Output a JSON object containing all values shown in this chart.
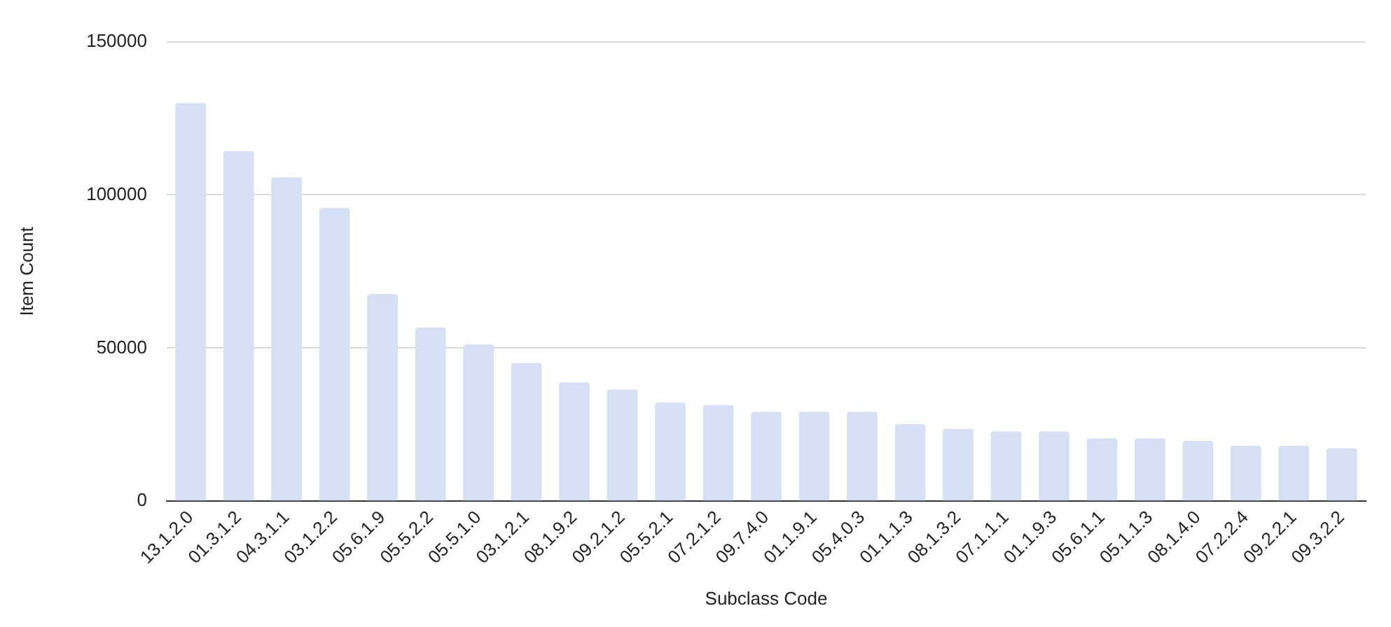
{
  "chart_data": {
    "type": "bar",
    "xlabel": "Subclass Code",
    "ylabel": "Item Count",
    "categories": [
      "13.1.2.0",
      "01.3.1.2",
      "04.3.1.1",
      "03.1.2.2",
      "05.6.1.9",
      "05.5.2.2",
      "05.5.1.0",
      "03.1.2.1",
      "08.1.9.2",
      "09.2.1.2",
      "05.5.2.1",
      "07.2.1.2",
      "09.7.4.0",
      "01.1.9.1",
      "05.4.0.3",
      "01.1.1.3",
      "08.1.3.2",
      "07.1.1.1",
      "01.1.9.3",
      "05.6.1.1",
      "05.1.1.3",
      "08.1.4.0",
      "07.2.2.4",
      "09.2.2.1",
      "09.3.2.2"
    ],
    "values": [
      130000,
      114300,
      105700,
      95700,
      67600,
      56700,
      51200,
      45100,
      38800,
      36500,
      32200,
      31400,
      29200,
      29200,
      29200,
      25200,
      23600,
      22800,
      22800,
      20500,
      20500,
      19700,
      18100,
      18100,
      17300
    ],
    "color": "#d5e0f4",
    "ylim": [
      0,
      150000
    ],
    "yticks": [
      0,
      50000,
      100000,
      150000
    ],
    "grid": "y"
  }
}
